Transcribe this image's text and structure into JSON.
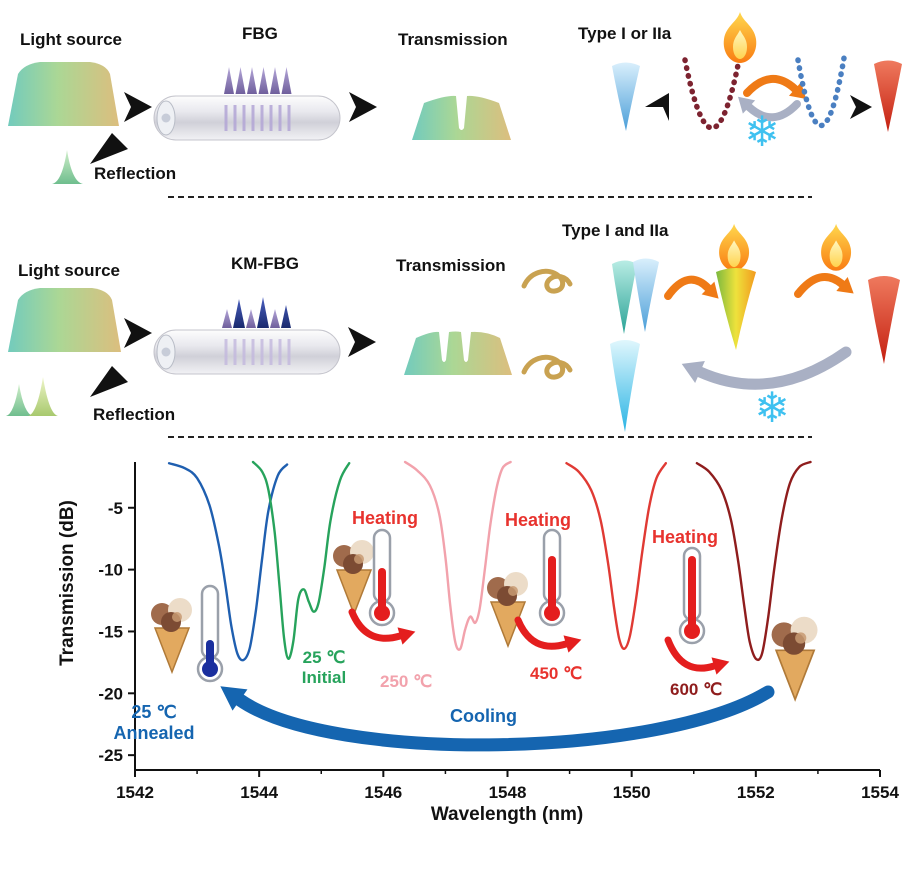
{
  "colors": {
    "heating_red": "#e8332e",
    "cooling_blue": "#1565b0",
    "initial_green": "#27a35c",
    "pink_250": "#f2a2ac",
    "red_450": "#e8332e",
    "darkred_600": "#8f1d1d"
  },
  "icons": {
    "snowflake": "❄"
  },
  "fbg_panel": {
    "light_source_label": "Light source",
    "device_label": "FBG",
    "transmission_label": "Transmission",
    "reflection_label": "Reflection",
    "type_label": "Type I or IIa"
  },
  "kmfbg_panel": {
    "light_source_label": "Light source",
    "device_label": "KM-FBG",
    "transmission_label": "Transmission",
    "reflection_label": "Reflection",
    "type_label": "Type I and IIa"
  },
  "chart": {
    "xlabel": "Wavelength (nm)",
    "ylabel": "Transmission (dB)",
    "heating_label_1": "Heating",
    "heating_label_2": "Heating",
    "heating_label_3": "Heating",
    "cooling_label": "Cooling",
    "annealed_label": "25 ℃\nAnnealed",
    "initial_label": "25 ℃\nInitial",
    "temp_250_label": "250 ℃",
    "temp_450_label": "450 ℃",
    "temp_600_label": "600 ℃"
  },
  "chart_data": {
    "type": "line",
    "title": "",
    "xlabel": "Wavelength (nm)",
    "ylabel": "Transmission (dB)",
    "xlim": [
      1542,
      1554
    ],
    "ylim": [
      -26.2,
      -1.3
    ],
    "xticks": [
      1542,
      1544,
      1546,
      1548,
      1550,
      1552,
      1554
    ],
    "x_minor_ticks": [
      1543,
      1545,
      1547,
      1549,
      1551,
      1553
    ],
    "yticks": [
      -5,
      -10,
      -15,
      -20,
      -25
    ],
    "grid": false,
    "legend": "inline annotations",
    "series": [
      {
        "name": "25 ℃ Annealed",
        "color": "#1f5fb0",
        "points": [
          [
            1542.55,
            -1.4
          ],
          [
            1542.8,
            -1.8
          ],
          [
            1543.0,
            -2.6
          ],
          [
            1543.2,
            -4.8
          ],
          [
            1543.35,
            -8
          ],
          [
            1543.45,
            -11
          ],
          [
            1543.55,
            -14.5
          ],
          [
            1543.65,
            -16.8
          ],
          [
            1543.75,
            -17.3
          ],
          [
            1543.85,
            -16.3
          ],
          [
            1543.95,
            -13.2
          ],
          [
            1544.05,
            -9
          ],
          [
            1544.15,
            -5.2
          ],
          [
            1544.3,
            -2.4
          ],
          [
            1544.45,
            -1.5
          ]
        ]
      },
      {
        "name": "25 ℃ Initial",
        "color": "#27a35c",
        "points": [
          [
            1543.9,
            -1.3
          ],
          [
            1544.05,
            -2.1
          ],
          [
            1544.15,
            -3.6
          ],
          [
            1544.25,
            -7
          ],
          [
            1544.33,
            -11.5
          ],
          [
            1544.4,
            -15.5
          ],
          [
            1544.47,
            -17.2
          ],
          [
            1544.55,
            -15.8
          ],
          [
            1544.63,
            -12.4
          ],
          [
            1544.72,
            -11.6
          ],
          [
            1544.8,
            -12.6
          ],
          [
            1544.88,
            -13.4
          ],
          [
            1544.96,
            -12.6
          ],
          [
            1545.05,
            -9.8
          ],
          [
            1545.15,
            -6
          ],
          [
            1545.3,
            -2.8
          ],
          [
            1545.45,
            -1.4
          ]
        ]
      },
      {
        "name": "250 ℃",
        "color": "#f2a2ac",
        "points": [
          [
            1546.35,
            -1.3
          ],
          [
            1546.55,
            -2
          ],
          [
            1546.75,
            -3.2
          ],
          [
            1546.9,
            -5.5
          ],
          [
            1547.0,
            -9
          ],
          [
            1547.08,
            -13
          ],
          [
            1547.16,
            -15.9
          ],
          [
            1547.24,
            -16.4
          ],
          [
            1547.32,
            -14.8
          ],
          [
            1547.4,
            -13.8
          ],
          [
            1547.48,
            -14.3
          ],
          [
            1547.55,
            -13.2
          ],
          [
            1547.63,
            -10.2
          ],
          [
            1547.72,
            -6.5
          ],
          [
            1547.82,
            -3.5
          ],
          [
            1547.92,
            -1.8
          ],
          [
            1548.05,
            -1.3
          ]
        ]
      },
      {
        "name": "450 ℃",
        "color": "#e03a34",
        "points": [
          [
            1548.95,
            -1.4
          ],
          [
            1549.15,
            -2.1
          ],
          [
            1549.35,
            -3.6
          ],
          [
            1549.5,
            -6
          ],
          [
            1549.62,
            -9.5
          ],
          [
            1549.72,
            -13.2
          ],
          [
            1549.8,
            -15.6
          ],
          [
            1549.88,
            -16.4
          ],
          [
            1549.97,
            -15.4
          ],
          [
            1550.07,
            -12.4
          ],
          [
            1550.17,
            -8.6
          ],
          [
            1550.28,
            -5
          ],
          [
            1550.4,
            -2.6
          ],
          [
            1550.55,
            -1.4
          ]
        ]
      },
      {
        "name": "600 ℃",
        "color": "#8f1d1d",
        "points": [
          [
            1551.05,
            -1.4
          ],
          [
            1551.25,
            -2.1
          ],
          [
            1551.45,
            -3.6
          ],
          [
            1551.6,
            -6
          ],
          [
            1551.72,
            -9.5
          ],
          [
            1551.82,
            -13.2
          ],
          [
            1551.9,
            -15.8
          ],
          [
            1552.0,
            -17.2
          ],
          [
            1552.1,
            -16.8
          ],
          [
            1552.2,
            -13.8
          ],
          [
            1552.3,
            -9.8
          ],
          [
            1552.42,
            -5.8
          ],
          [
            1552.55,
            -3
          ],
          [
            1552.7,
            -1.7
          ],
          [
            1552.88,
            -1.3
          ]
        ]
      }
    ]
  }
}
